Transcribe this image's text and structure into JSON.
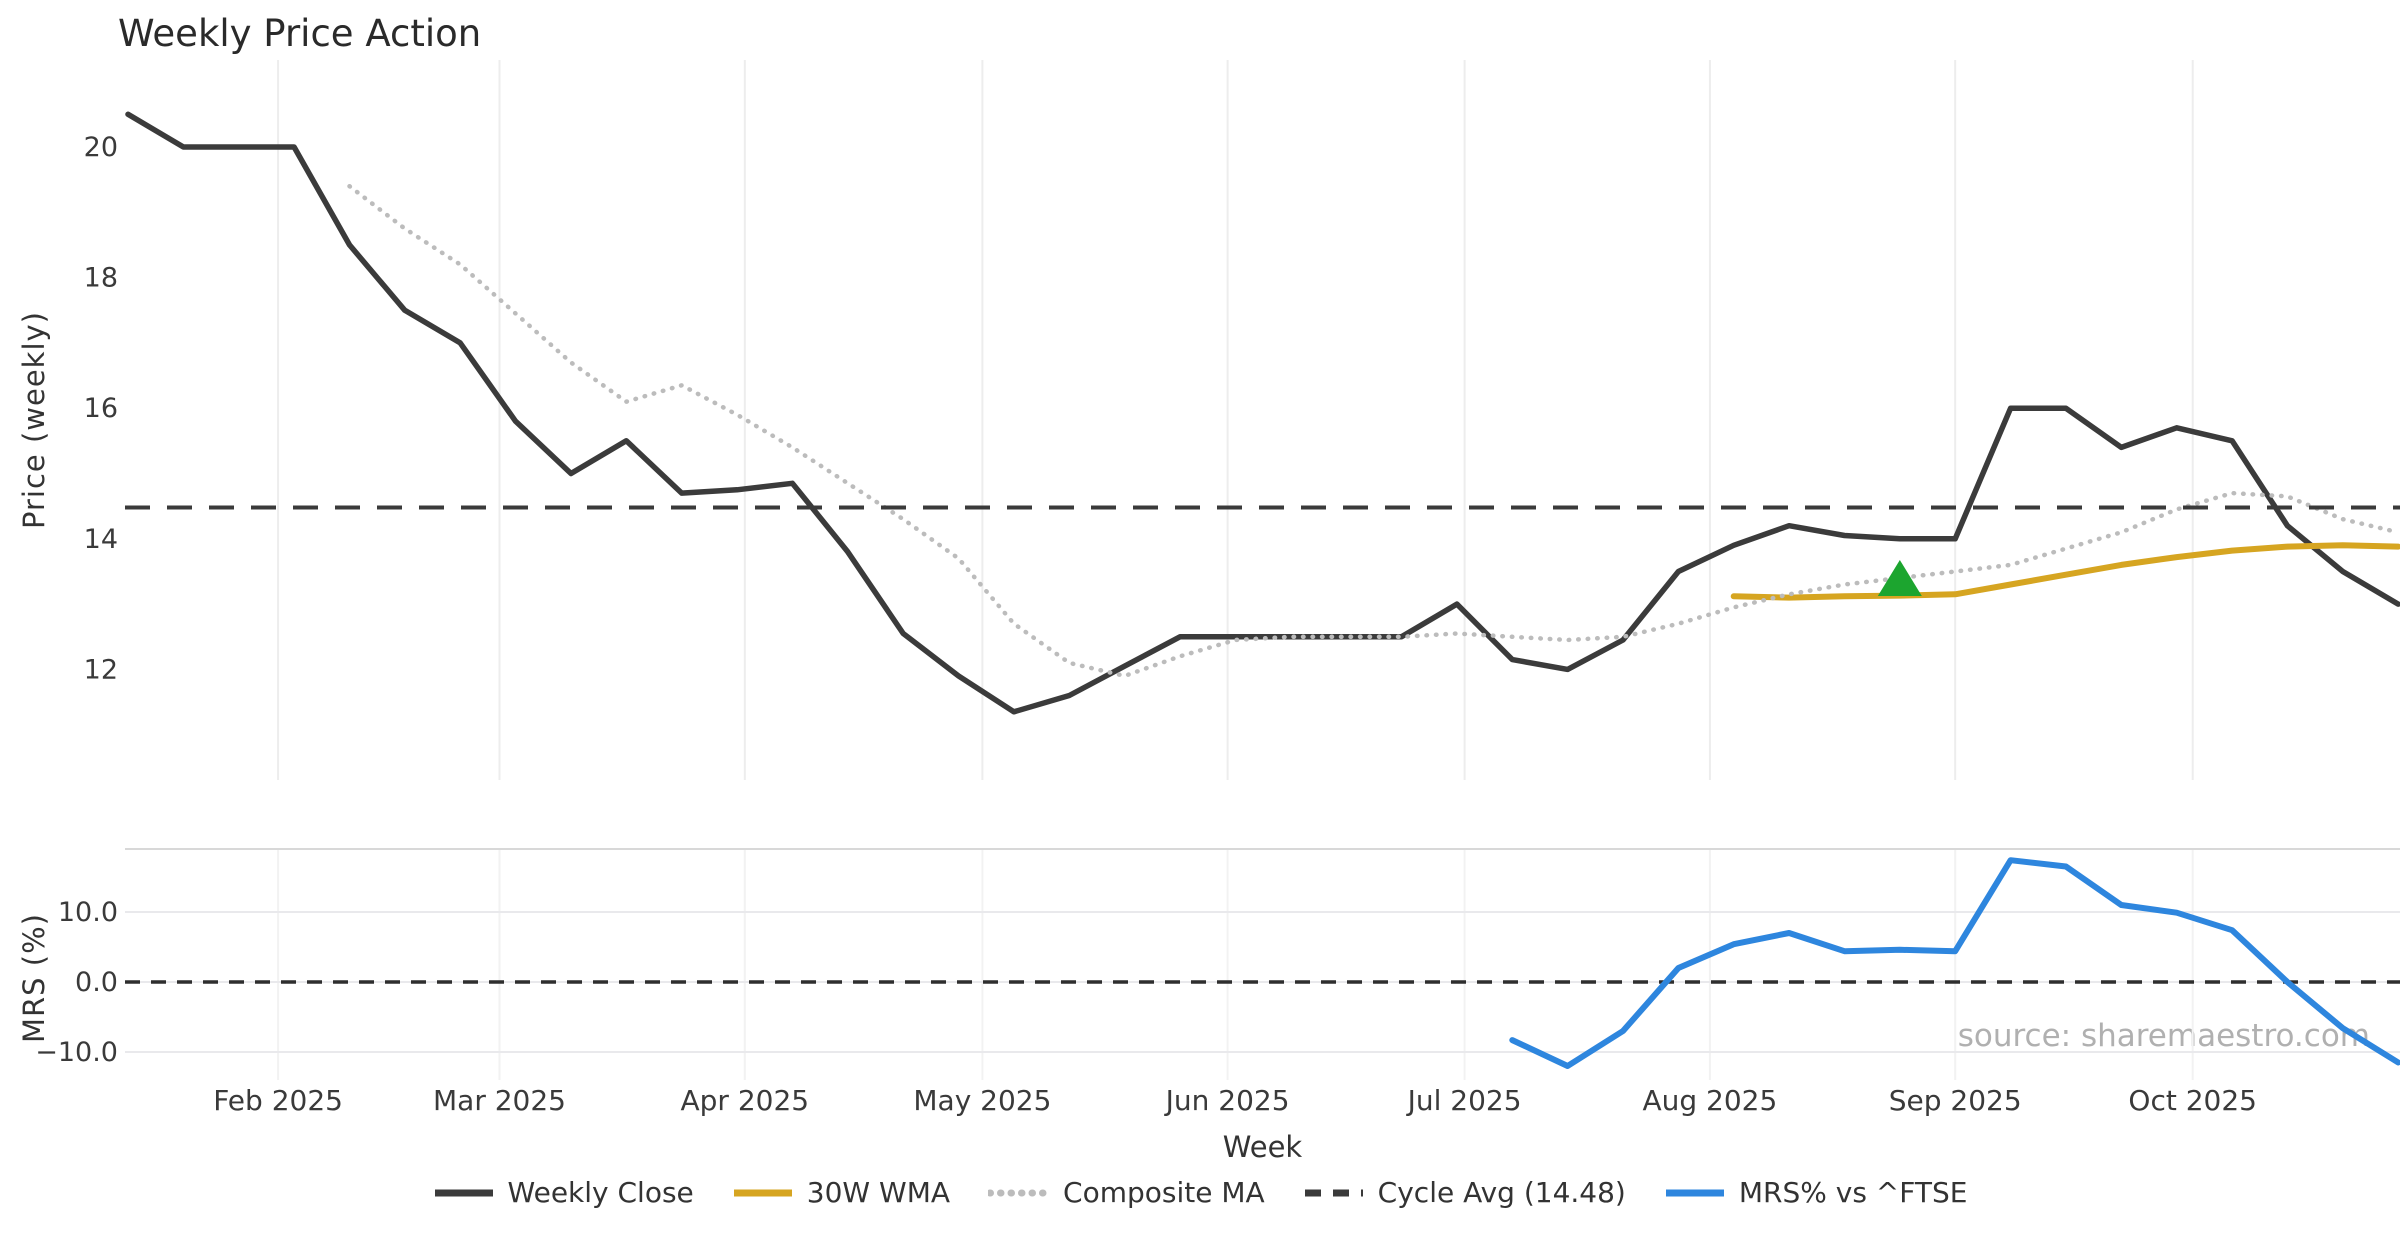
{
  "chart_data": {
    "type": "line",
    "title": "Weekly Price Action",
    "source_note": "source: sharemaestro.com",
    "layout": {
      "subplots": [
        "price (top, large)",
        "mrs (bottom, small)"
      ],
      "grid": "light vertical month gridlines; mrs subplot has light horizontal gridlines and top spine",
      "legend_position": "bottom-center"
    },
    "x_axis": {
      "label": "Week",
      "interval": "weekly",
      "start_date": "2025-01-13",
      "num_weeks": 42,
      "month_ticks": [
        {
          "label": "Feb 2025",
          "week": 2.71
        },
        {
          "label": "Mar 2025",
          "week": 6.71
        },
        {
          "label": "Apr 2025",
          "week": 11.14
        },
        {
          "label": "May 2025",
          "week": 15.43
        },
        {
          "label": "Jun 2025",
          "week": 19.86
        },
        {
          "label": "Jul 2025",
          "week": 24.14
        },
        {
          "label": "Aug 2025",
          "week": 28.57
        },
        {
          "label": "Sep 2025",
          "week": 33.0
        },
        {
          "label": "Oct 2025",
          "week": 37.29
        }
      ]
    },
    "price_axis": {
      "label": "Price (weekly)",
      "ticks": [
        20,
        18,
        16,
        14,
        12
      ],
      "range": [
        10.3,
        21.35
      ]
    },
    "mrs_axis": {
      "label": "MRS (%)",
      "ticks": [
        {
          "label": "10.0",
          "value": 10
        },
        {
          "label": "0.0",
          "value": 0
        },
        {
          "label": "−10.0",
          "value": -10
        }
      ],
      "range": [
        -14.5,
        19
      ],
      "zero_line_style": "dark dashed"
    },
    "series": [
      {
        "name": "Weekly Close",
        "color": "#3b3b3b",
        "style": "solid",
        "subplot": "price",
        "start_week": 0,
        "values": [
          20.5,
          20.0,
          20.0,
          20.0,
          18.5,
          17.5,
          17.0,
          15.8,
          15.0,
          15.5,
          14.7,
          14.75,
          14.85,
          13.8,
          12.55,
          11.9,
          11.35,
          11.6,
          12.05,
          12.5,
          12.5,
          12.5,
          12.5,
          12.5,
          13.0,
          12.15,
          12.0,
          12.45,
          13.5,
          13.9,
          14.2,
          14.05,
          14.0,
          14.0,
          16.0,
          16.0,
          15.4,
          15.7,
          15.5,
          14.2,
          13.5,
          13.0
        ]
      },
      {
        "name": "30W WMA",
        "color": "#d6a521",
        "style": "solid",
        "subplot": "price",
        "start_week": 29,
        "values": [
          13.12,
          13.1,
          13.12,
          13.13,
          13.15,
          13.3,
          13.45,
          13.6,
          13.72,
          13.82,
          13.88,
          13.9,
          13.88
        ]
      },
      {
        "name": "Composite MA",
        "color": "#bcbcbc",
        "style": "dotted",
        "subplot": "price",
        "start_week": 4,
        "values": [
          19.4,
          18.75,
          18.2,
          17.45,
          16.7,
          16.1,
          16.35,
          15.9,
          15.4,
          14.85,
          14.3,
          13.7,
          12.7,
          12.1,
          11.9,
          12.2,
          12.45,
          12.5,
          12.5,
          12.5,
          12.55,
          12.5,
          12.45,
          12.5,
          12.7,
          12.95,
          13.15,
          13.3,
          13.4,
          13.5,
          13.6,
          13.85,
          14.1,
          14.45,
          14.7,
          14.65,
          14.3,
          14.1
        ]
      },
      {
        "name": "Cycle Avg (14.48)",
        "color": "#3a3a3a",
        "style": "dashed",
        "subplot": "price",
        "hline": 14.48
      },
      {
        "name": "MRS% vs ^FTSE",
        "color": "#2e86de",
        "style": "solid",
        "subplot": "mrs",
        "start_week": 25,
        "values": [
          -8.3,
          -12.0,
          -7.0,
          2.0,
          5.4,
          7.0,
          4.4,
          4.6,
          4.4,
          17.4,
          16.5,
          11.0,
          9.9,
          7.4,
          0.0,
          -6.6,
          -11.5
        ]
      }
    ],
    "marker": {
      "shape": "triangle-up",
      "meaning": "signal marker on Composite MA",
      "color": "#1ca52f",
      "week": 32,
      "price": 13.4
    },
    "colors": {
      "background": "#ffffff",
      "gridline_vertical": "#ededed",
      "gridline_mrs_horizontal": "#e9e9ec",
      "mrs_top_spine": "#d8d8d8",
      "tick_text": "#3a3a3a",
      "axis_label_text": "#333333",
      "title_text": "#2a2a2a",
      "source_text": "#b0b0b0"
    }
  }
}
